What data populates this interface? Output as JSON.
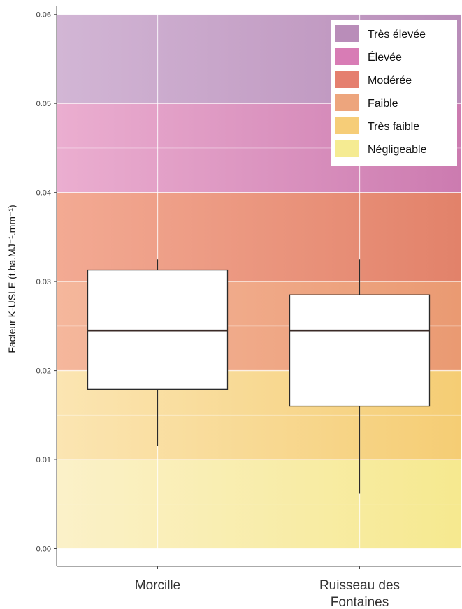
{
  "chart_data": {
    "type": "boxplot",
    "ylabel": "Facteur K-USLE  (t.ha.MJ⁻¹.mm⁻¹)",
    "ylim": [
      -0.002,
      0.061
    ],
    "yticks": [
      "0.00",
      "0.01",
      "0.02",
      "0.03",
      "0.04",
      "0.05",
      "0.06"
    ],
    "categories": [
      "Morcille",
      "Ruisseau des Fontaines"
    ],
    "boxes": [
      {
        "category": "Morcille",
        "whisker_low": 0.0115,
        "q1": 0.0179,
        "median": 0.0245,
        "q3": 0.0313,
        "whisker_high": 0.0325
      },
      {
        "category": "Ruisseau des Fontaines",
        "whisker_low": 0.0062,
        "q1": 0.016,
        "median": 0.0245,
        "q3": 0.0285,
        "whisker_high": 0.0325
      }
    ],
    "bands": [
      {
        "label": "Négligeable",
        "from": 0.0,
        "to": 0.01,
        "color_left": "#fbf1c9",
        "color_right": "#f6e98f"
      },
      {
        "label": "Très faible",
        "from": 0.01,
        "to": 0.02,
        "color_left": "#fbe5b2",
        "color_right": "#f5cd74"
      },
      {
        "label": "Faible",
        "from": 0.02,
        "to": 0.03,
        "color_left": "#f5b79c",
        "color_right": "#ea9a72"
      },
      {
        "label": "Modérée",
        "from": 0.03,
        "to": 0.04,
        "color_left": "#f3aa93",
        "color_right": "#e2826a"
      },
      {
        "label": "Élevée",
        "from": 0.04,
        "to": 0.05,
        "color_left": "#ebaed0",
        "color_right": "#cc7bb0"
      },
      {
        "label": "Très élevée",
        "from": 0.05,
        "to": 0.06,
        "color_left": "#d2b6d5",
        "color_right": "#b98db9"
      }
    ],
    "legend": {
      "placement": "top-right",
      "items": [
        {
          "label": "Très élevée",
          "color": "#b98db9"
        },
        {
          "label": "Élevée",
          "color": "#d87cb5"
        },
        {
          "label": "Modérée",
          "color": "#e57f6f"
        },
        {
          "label": "Faible",
          "color": "#eda57d"
        },
        {
          "label": "Très faible",
          "color": "#f6cd78"
        },
        {
          "label": "Négligeable",
          "color": "#f5eb92"
        }
      ]
    },
    "grid": true
  }
}
